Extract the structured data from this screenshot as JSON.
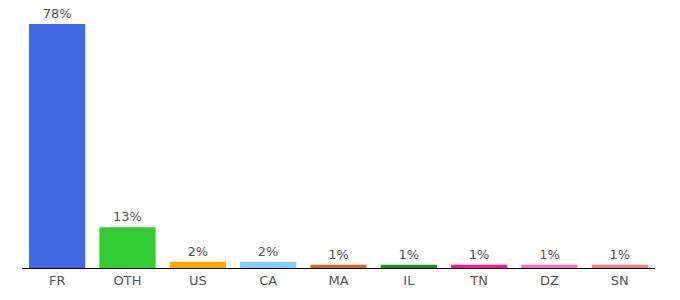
{
  "chart_data": {
    "type": "bar",
    "categories": [
      "FR",
      "OTH",
      "US",
      "CA",
      "MA",
      "IL",
      "TN",
      "DZ",
      "SN"
    ],
    "values": [
      78,
      13,
      2,
      2,
      1,
      1,
      1,
      1,
      1
    ],
    "value_labels": [
      "78%",
      "13%",
      "2%",
      "2%",
      "1%",
      "1%",
      "1%",
      "1%",
      "1%"
    ],
    "colors": [
      "#4169e1",
      "#32cd32",
      "#ffa500",
      "#87cefa",
      "#d2691e",
      "#228b22",
      "#ff1493",
      "#ff69b4",
      "#f08080"
    ],
    "ylim": [
      0,
      78
    ],
    "grid": false,
    "data_labels": true,
    "tick_labels": "x"
  }
}
